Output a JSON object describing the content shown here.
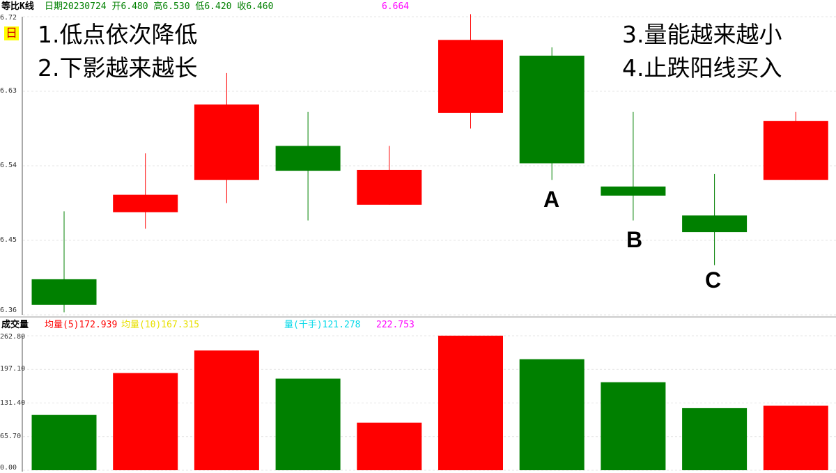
{
  "header": {
    "title": "等比K线",
    "info": "日期20230724 开6.480 高6.530 低6.420 收6.460",
    "cursor_value": "6.664",
    "period_badge": "日"
  },
  "volume_header": {
    "title": "成交量",
    "ma5": "均量(5)172.939",
    "ma10": "均量(10)167.315",
    "vol": "量(千手)121.278",
    "cursor_value": "222.753"
  },
  "notes": {
    "left1": "1.低点依次降低",
    "left2": "2.下影越来越长",
    "right1": "3.量能越来越小",
    "right2": "4.止跌阳线买入"
  },
  "markers": {
    "A": "A",
    "B": "B",
    "C": "C"
  },
  "colors": {
    "up": "#ff0000",
    "down": "#008000",
    "ma5": "#ff0000",
    "ma10": "#ffff00",
    "vol": "#00ffff",
    "cursor": "#ff00ff"
  },
  "chart_data": [
    {
      "type": "candlestick",
      "ylim": [
        6.36,
        6.72
      ],
      "yticks": [
        "6.72",
        "6.63",
        "6.54",
        "6.45",
        "6.36"
      ],
      "grid": true,
      "candles": [
        {
          "open": 6.403,
          "close": 6.372,
          "high": 6.485,
          "low": 6.363
        },
        {
          "open": 6.484,
          "close": 6.505,
          "high": 6.555,
          "low": 6.464
        },
        {
          "open": 6.523,
          "close": 6.614,
          "high": 6.652,
          "low": 6.495
        },
        {
          "open": 6.564,
          "close": 6.534,
          "high": 6.605,
          "low": 6.474
        },
        {
          "open": 6.493,
          "close": 6.535,
          "high": 6.564,
          "low": 6.493
        },
        {
          "open": 6.604,
          "close": 6.692,
          "high": 6.723,
          "low": 6.585
        },
        {
          "open": 6.673,
          "close": 6.543,
          "high": 6.683,
          "low": 6.523
        },
        {
          "open": 6.515,
          "close": 6.504,
          "high": 6.605,
          "low": 6.474
        },
        {
          "open": 6.48,
          "close": 6.46,
          "high": 6.53,
          "low": 6.42
        },
        {
          "open": 6.523,
          "close": 6.594,
          "high": 6.605,
          "low": 6.523
        }
      ]
    },
    {
      "type": "bar",
      "ylim": [
        0,
        262.8
      ],
      "yticks": [
        "262.80",
        "197.10",
        "131.40",
        "65.70",
        "0.00"
      ],
      "grid": true,
      "values": [
        108,
        190,
        234,
        179,
        93,
        263,
        217,
        172,
        121.278,
        126
      ],
      "directions": [
        "down",
        "up",
        "up",
        "down",
        "up",
        "up",
        "down",
        "down",
        "down",
        "up"
      ]
    }
  ]
}
